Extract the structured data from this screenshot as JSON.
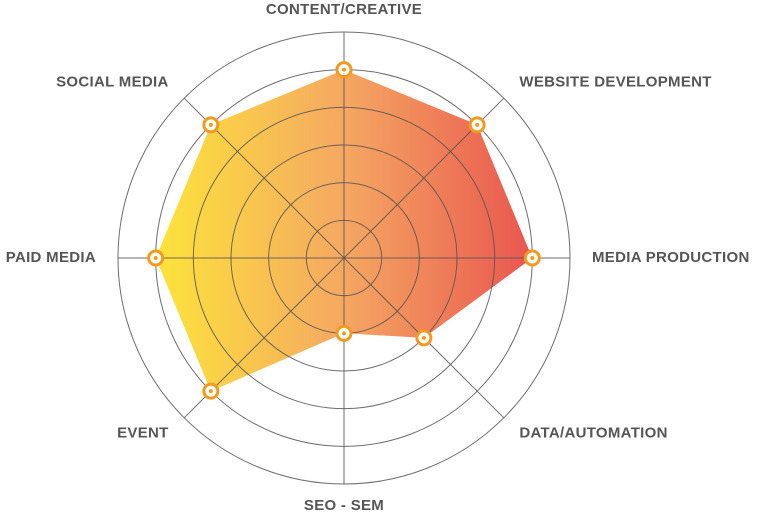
{
  "chart_data": {
    "type": "radar",
    "categories": [
      "CONTENT/CREATIVE",
      "WEBSITE DEVELOPMENT",
      "MEDIA PRODUCTION",
      "DATA/AUTOMATION",
      "SEO - SEM",
      "EVENT",
      "PAID MEDIA",
      "SOCIAL MEDIA"
    ],
    "values": [
      5,
      5,
      5,
      3,
      2,
      5,
      5,
      5
    ],
    "rlim": [
      0,
      6
    ],
    "rticks": [
      1,
      2,
      3,
      4,
      5,
      6
    ],
    "colors": [
      "#fde43b",
      "#f5a862",
      "#e9564f"
    ],
    "marker_color": "#f39a1c",
    "grid_color": "#555555"
  }
}
